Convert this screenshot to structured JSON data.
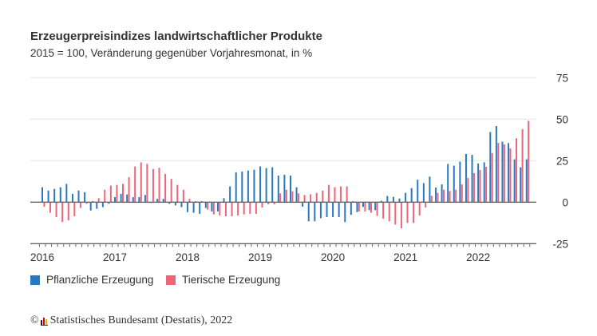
{
  "chart_data": {
    "type": "bar",
    "title": "Erzeugerpreisindizes landwirtschaftlicher Produkte",
    "subtitle": "2015 = 100, Veränderung gegenüber Vorjahresmonat, in %",
    "x_start": "2016-01",
    "x_end": "2022-09",
    "x_tick_labels": [
      "2016",
      "2017",
      "2018",
      "2019",
      "2020",
      "2021",
      "2022"
    ],
    "y_tick_labels": [
      "75",
      "50",
      "25",
      "0",
      "-25"
    ],
    "ylim": [
      -25,
      75
    ],
    "grid": true,
    "legend_placement": "bottom-left",
    "series": [
      {
        "name": "Pflanzliche Erzeugung",
        "color": "#2a78c0",
        "values": [
          9,
          7,
          8,
          9,
          11,
          5,
          7,
          6,
          -5,
          -4,
          -3,
          -1,
          3,
          5,
          4.6,
          3,
          3,
          4.3,
          -0.5,
          2,
          2,
          -1,
          -2,
          -3,
          -6,
          -6.4,
          -7,
          -3.5,
          -5.6,
          -5.6,
          2.4,
          9.5,
          18,
          18.5,
          19,
          19.5,
          21.5,
          20.5,
          21,
          16,
          16.5,
          16,
          9,
          -2.7,
          -11.5,
          -11.5,
          -9.6,
          -9,
          -9,
          -9,
          -12,
          -7.6,
          -6,
          -2.9,
          -4.8,
          -4.8,
          0.8,
          3.7,
          3.2,
          2.2,
          5.6,
          8.5,
          13.5,
          11.5,
          15.4,
          8.8,
          10.7,
          23,
          22,
          24.4,
          29,
          28.5,
          23.3,
          24,
          42.3,
          45.8,
          36.4,
          35.6,
          25.8,
          21,
          25.8
        ]
      },
      {
        "name": "Tierische Erzeugung",
        "color": "#ee6478",
        "values": [
          -2.7,
          -6.4,
          -9,
          -12,
          -11,
          -8.5,
          -3.5,
          -1,
          0.7,
          2.4,
          7.5,
          10,
          10.4,
          11,
          15,
          21.5,
          24,
          23,
          20,
          20.7,
          17,
          14,
          10.4,
          7.5,
          2,
          0.6,
          0.6,
          -4.5,
          -7.4,
          -8,
          -8.5,
          -8.5,
          -8,
          -7.4,
          -7,
          -7,
          -3.2,
          -1.3,
          -1.3,
          5.3,
          7.5,
          6.6,
          5.3,
          4.3,
          4.8,
          5.6,
          7,
          10.4,
          9,
          9.5,
          9.5,
          0.6,
          -5.6,
          -5.6,
          -6.4,
          -8.3,
          -10,
          -11.5,
          -13.5,
          -15.7,
          -12.5,
          -12.5,
          -8,
          -3.2,
          3.8,
          5.6,
          7.5,
          6.7,
          7.5,
          10.7,
          14.6,
          17.5,
          19.4,
          21.3,
          29.6,
          35.7,
          34.8,
          32.4,
          38.5,
          44,
          49
        ]
      }
    ]
  },
  "footer": {
    "copyright_symbol": "©",
    "source": "Statistisches Bundesamt (Destatis), 2022"
  }
}
